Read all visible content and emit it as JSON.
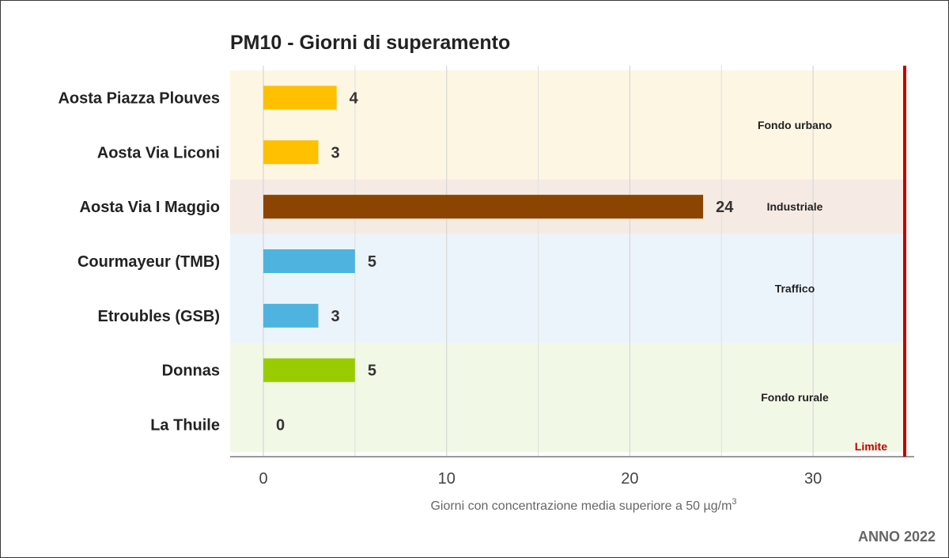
{
  "chart_data": {
    "type": "bar",
    "orientation": "horizontal",
    "title": "PM10 - Giorni di superamento",
    "xlabel_main": "Giorni con concentrazione media superiore a 50 µg/m",
    "xlabel_sup": "3",
    "xlim": [
      0,
      35
    ],
    "x_ticks": [
      0,
      10,
      20,
      30
    ],
    "categories": [
      "Aosta Piazza Plouves",
      "Aosta Via Liconi",
      "Aosta Via I Maggio",
      "Courmayeur (TMB)",
      "Etroubles (GSB)",
      "Donnas",
      "La Thuile"
    ],
    "values": [
      4,
      3,
      24,
      5,
      3,
      5,
      0
    ],
    "bar_colors": [
      "#ffc000",
      "#ffc000",
      "#8b4500",
      "#4fb3e0",
      "#4fb3e0",
      "#99cc00",
      "#99cc00"
    ],
    "groups": [
      {
        "label": "Fondo urbano",
        "start": 0,
        "end": 1,
        "color": "#fdf6e3"
      },
      {
        "label": "Industriale",
        "start": 2,
        "end": 2,
        "color": "#f5ebe4"
      },
      {
        "label": "Traffico",
        "start": 3,
        "end": 4,
        "color": "#ecf4fb"
      },
      {
        "label": "Fondo rurale",
        "start": 5,
        "end": 6,
        "color": "#f2f8e6"
      }
    ],
    "limit": {
      "value": 35,
      "label": "Limite",
      "color": "#c00000"
    },
    "grid": true,
    "footer": "ANNO 2022"
  }
}
